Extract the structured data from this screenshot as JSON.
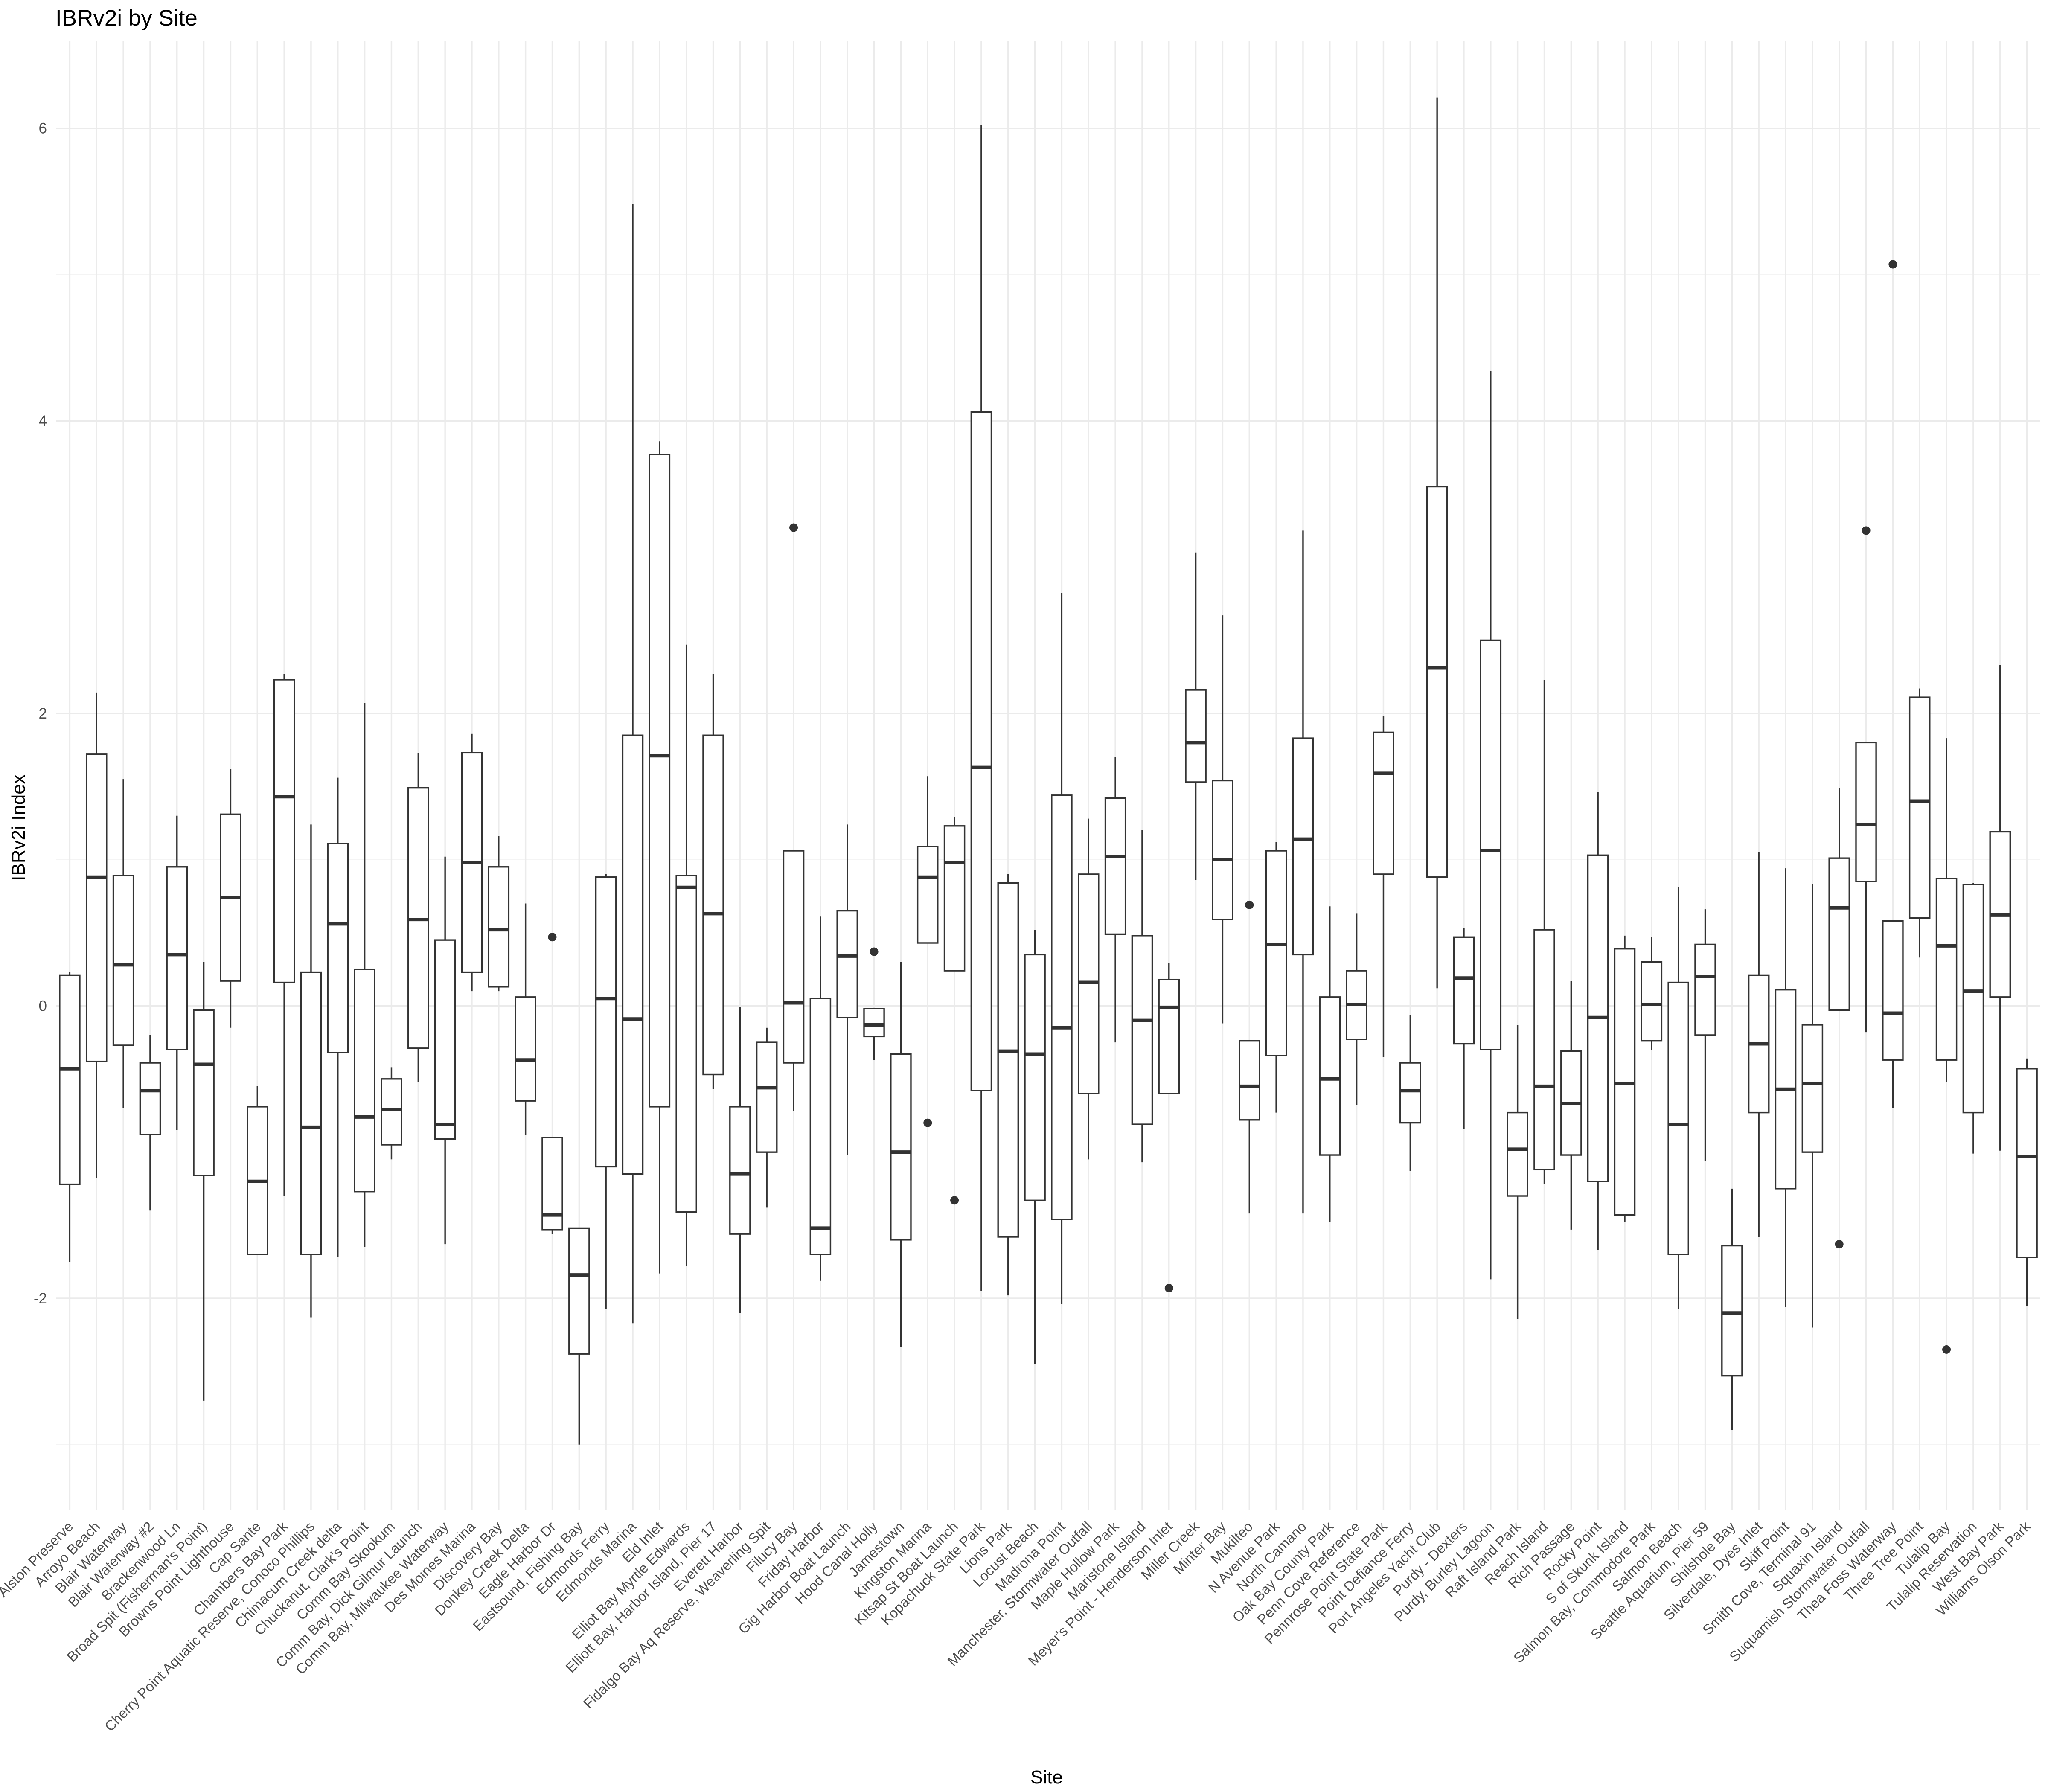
{
  "chart_data": {
    "type": "boxplot",
    "title": "IBRv2i by Site",
    "xlabel": "Site",
    "ylabel": "IBRv2i Index",
    "ylim": [
      -3.45,
      6.6
    ],
    "yticks": [
      -2,
      0,
      2,
      4,
      6
    ],
    "grid": true,
    "legend": "none",
    "categories": [
      "Alston Preserve",
      "Arroyo Beach",
      "Blair Waterway",
      "Blair Waterway #2",
      "Brackenwood Ln",
      "Broad Spit (Fisherman's Point)",
      "Browns Point Lighthouse",
      "Cap Sante",
      "Chambers Bay Park",
      "Cherry Point Aquatic Reserve, Conoco Phillips",
      "Chimacum Creek delta",
      "Chuckanut, Clark's Point",
      "Comm Bay Skookum",
      "Comm Bay, Dick Gilmur Launch",
      "Comm Bay, Milwaukee Waterway",
      "Des Moines Marina",
      "Discovery Bay",
      "Donkey Creek Delta",
      "Eagle Harbor Dr",
      "Eastsound, Fishing Bay",
      "Edmonds Ferry",
      "Edmonds Marina",
      "Eld Inlet",
      "Elliot Bay Myrtle Edwards",
      "Elliott Bay, Harbor Island, Pier 17",
      "Everett Harbor",
      "Fidalgo Bay Aq Reserve, Weaverling Spit",
      "Filucy Bay",
      "Friday Harbor",
      "Gig Harbor Boat Launch",
      "Hood Canal Holly",
      "Jamestown",
      "Kingston Marina",
      "Kitsap St Boat Launch",
      "Kopachuck State Park",
      "Lions Park",
      "Locust Beach",
      "Madrona Point",
      "Manchester, Stormwater Outfall",
      "Maple Hollow Park",
      "Maristone Island",
      "Meyer's Point - Henderson Inlet",
      "Miller Creek",
      "Minter Bay",
      "Mukilteo",
      "N Avenue Park",
      "North Camano",
      "Oak Bay County Park",
      "Penn Cove Reference",
      "Pennrose Point State Park",
      "Point Defiance Ferry",
      "Port Angeles Yacht Club",
      "Purdy - Dexters",
      "Purdy, Burley Lagoon",
      "Raft Island Park",
      "Reach Island",
      "Rich Passage",
      "Rocky Point",
      "S of Skunk Island",
      "Salmon Bay, Commodore Park",
      "Salmon Beach",
      "Seattle Aquarium, Pier 59",
      "Shilshole Bay",
      "Silverdale, Dyes Inlet",
      "Skiff Point",
      "Smith Cove, Terminal 91",
      "Squaxin Island",
      "Suquamish Stormwater Outfall",
      "Thea Foss Waterway",
      "Three Tree Point",
      "Tulalip Bay",
      "Tulalip Reservation",
      "West Bay Park",
      "Williams Olson Park"
    ],
    "boxes": [
      {
        "site": "Alston Preserve",
        "min": -1.75,
        "q1": -1.22,
        "median": -0.43,
        "q3": 0.21,
        "max": 0.23,
        "outliers": []
      },
      {
        "site": "Arroyo Beach",
        "min": -1.18,
        "q1": -0.38,
        "median": 0.88,
        "q3": 1.72,
        "max": 2.14,
        "outliers": []
      },
      {
        "site": "Blair Waterway",
        "min": -0.7,
        "q1": -0.27,
        "median": 0.28,
        "q3": 0.89,
        "max": 1.55,
        "outliers": []
      },
      {
        "site": "Blair Waterway #2",
        "min": -1.4,
        "q1": -0.88,
        "median": -0.58,
        "q3": -0.39,
        "max": -0.2,
        "outliers": []
      },
      {
        "site": "Brackenwood Ln",
        "min": -0.85,
        "q1": -0.3,
        "median": 0.35,
        "q3": 0.95,
        "max": 1.3,
        "outliers": []
      },
      {
        "site": "Broad Spit (Fisherman's Point)",
        "min": -2.7,
        "q1": -1.16,
        "median": -0.4,
        "q3": -0.03,
        "max": 0.3,
        "outliers": []
      },
      {
        "site": "Browns Point Lighthouse",
        "min": -0.15,
        "q1": 0.17,
        "median": 0.74,
        "q3": 1.31,
        "max": 1.62,
        "outliers": []
      },
      {
        "site": "Cap Sante",
        "min": -1.7,
        "q1": -1.7,
        "median": -1.2,
        "q3": -0.69,
        "max": -0.55,
        "outliers": []
      },
      {
        "site": "Chambers Bay Park",
        "min": -1.3,
        "q1": 0.16,
        "median": 1.43,
        "q3": 2.23,
        "max": 2.27,
        "outliers": []
      },
      {
        "site": "Cherry Point Aquatic Reserve, Conoco Phillips",
        "min": -2.13,
        "q1": -1.7,
        "median": -0.83,
        "q3": 0.23,
        "max": 1.24,
        "outliers": []
      },
      {
        "site": "Chimacum Creek delta",
        "min": -1.72,
        "q1": -0.32,
        "median": 0.56,
        "q3": 1.11,
        "max": 1.56,
        "outliers": []
      },
      {
        "site": "Chuckanut, Clark's Point",
        "min": -1.65,
        "q1": -1.27,
        "median": -0.76,
        "q3": 0.25,
        "max": 2.07,
        "outliers": []
      },
      {
        "site": "Comm Bay Skookum",
        "min": -1.05,
        "q1": -0.95,
        "median": -0.71,
        "q3": -0.5,
        "max": -0.42,
        "outliers": []
      },
      {
        "site": "Comm Bay, Dick Gilmur Launch",
        "min": -0.52,
        "q1": -0.29,
        "median": 0.59,
        "q3": 1.49,
        "max": 1.73,
        "outliers": []
      },
      {
        "site": "Comm Bay, Milwaukee Waterway",
        "min": -1.63,
        "q1": -0.91,
        "median": -0.81,
        "q3": 0.45,
        "max": 1.02,
        "outliers": []
      },
      {
        "site": "Des Moines Marina",
        "min": 0.1,
        "q1": 0.23,
        "median": 0.98,
        "q3": 1.73,
        "max": 1.86,
        "outliers": []
      },
      {
        "site": "Discovery Bay",
        "min": 0.1,
        "q1": 0.13,
        "median": 0.52,
        "q3": 0.95,
        "max": 1.16,
        "outliers": []
      },
      {
        "site": "Donkey Creek Delta",
        "min": -0.88,
        "q1": -0.65,
        "median": -0.37,
        "q3": 0.06,
        "max": 0.7,
        "outliers": []
      },
      {
        "site": "Eagle Harbor Dr",
        "min": -1.56,
        "q1": -1.53,
        "median": -1.43,
        "q3": -0.9,
        "max": -0.9,
        "outliers": [
          0.47
        ]
      },
      {
        "site": "Eastsound, Fishing Bay",
        "min": -3.0,
        "q1": -2.38,
        "median": -1.84,
        "q3": -1.52,
        "max": -1.52,
        "outliers": []
      },
      {
        "site": "Edmonds Ferry",
        "min": -2.07,
        "q1": -1.1,
        "median": 0.05,
        "q3": 0.88,
        "max": 0.9,
        "outliers": []
      },
      {
        "site": "Edmonds Marina",
        "min": -2.17,
        "q1": -1.15,
        "median": -0.09,
        "q3": 1.85,
        "max": 5.48,
        "outliers": []
      },
      {
        "site": "Eld Inlet",
        "min": -1.83,
        "q1": -0.69,
        "median": 1.71,
        "q3": 3.77,
        "max": 3.86,
        "outliers": []
      },
      {
        "site": "Elliot Bay Myrtle Edwards",
        "min": -1.78,
        "q1": -1.41,
        "median": 0.81,
        "q3": 0.89,
        "max": 2.47,
        "outliers": []
      },
      {
        "site": "Elliott Bay, Harbor Island, Pier 17",
        "min": -0.57,
        "q1": -0.47,
        "median": 0.63,
        "q3": 1.85,
        "max": 2.27,
        "outliers": []
      },
      {
        "site": "Everett Harbor",
        "min": -2.1,
        "q1": -1.56,
        "median": -1.15,
        "q3": -0.69,
        "max": -0.01,
        "outliers": []
      },
      {
        "site": "Fidalgo Bay Aq Reserve, Weaverling Spit",
        "min": -1.38,
        "q1": -1.0,
        "median": -0.56,
        "q3": -0.25,
        "max": -0.15,
        "outliers": []
      },
      {
        "site": "Filucy Bay",
        "min": -0.72,
        "q1": -0.39,
        "median": 0.02,
        "q3": 1.06,
        "max": 1.06,
        "outliers": [
          3.27
        ]
      },
      {
        "site": "Friday Harbor",
        "min": -1.88,
        "q1": -1.7,
        "median": -1.52,
        "q3": 0.05,
        "max": 0.61,
        "outliers": []
      },
      {
        "site": "Gig Harbor Boat Launch",
        "min": -1.02,
        "q1": -0.08,
        "median": 0.34,
        "q3": 0.65,
        "max": 1.24,
        "outliers": []
      },
      {
        "site": "Hood Canal Holly",
        "min": -0.37,
        "q1": -0.21,
        "median": -0.13,
        "q3": -0.02,
        "max": -0.02,
        "outliers": [
          0.37
        ]
      },
      {
        "site": "Jamestown",
        "min": -2.33,
        "q1": -1.6,
        "median": -1.0,
        "q3": -0.33,
        "max": 0.3,
        "outliers": []
      },
      {
        "site": "Kingston Marina",
        "min": 0.43,
        "q1": 0.43,
        "median": 0.88,
        "q3": 1.09,
        "max": 1.57,
        "outliers": [
          -0.8
        ]
      },
      {
        "site": "Kitsap St Boat Launch",
        "min": 0.24,
        "q1": 0.24,
        "median": 0.98,
        "q3": 1.23,
        "max": 1.29,
        "outliers": [
          -1.33
        ]
      },
      {
        "site": "Kopachuck State Park",
        "min": -1.95,
        "q1": -0.58,
        "median": 1.63,
        "q3": 4.06,
        "max": 6.02,
        "outliers": []
      },
      {
        "site": "Lions Park",
        "min": -1.98,
        "q1": -1.58,
        "median": -0.31,
        "q3": 0.84,
        "max": 0.9,
        "outliers": []
      },
      {
        "site": "Locust Beach",
        "min": -2.45,
        "q1": -1.33,
        "median": -0.33,
        "q3": 0.35,
        "max": 0.52,
        "outliers": []
      },
      {
        "site": "Madrona Point",
        "min": -2.04,
        "q1": -1.46,
        "median": -0.15,
        "q3": 1.44,
        "max": 2.82,
        "outliers": []
      },
      {
        "site": "Manchester, Stormwater Outfall",
        "min": -1.05,
        "q1": -0.6,
        "median": 0.16,
        "q3": 0.9,
        "max": 1.28,
        "outliers": []
      },
      {
        "site": "Maple Hollow Park",
        "min": -0.25,
        "q1": 0.49,
        "median": 1.02,
        "q3": 1.42,
        "max": 1.7,
        "outliers": []
      },
      {
        "site": "Maristone Island",
        "min": -1.07,
        "q1": -0.81,
        "median": -0.1,
        "q3": 0.48,
        "max": 1.2,
        "outliers": []
      },
      {
        "site": "Meyer's Point - Henderson Inlet",
        "min": -0.6,
        "q1": -0.6,
        "median": -0.01,
        "q3": 0.18,
        "max": 0.29,
        "outliers": [
          -1.93
        ]
      },
      {
        "site": "Miller Creek",
        "min": 0.86,
        "q1": 1.53,
        "median": 1.8,
        "q3": 2.16,
        "max": 3.1,
        "outliers": []
      },
      {
        "site": "Minter Bay",
        "min": -0.12,
        "q1": 0.59,
        "median": 1.0,
        "q3": 1.54,
        "max": 2.67,
        "outliers": []
      },
      {
        "site": "Mukilteo",
        "min": -1.42,
        "q1": -0.78,
        "median": -0.55,
        "q3": -0.24,
        "max": -0.24,
        "outliers": [
          0.69
        ]
      },
      {
        "site": "N Avenue Park",
        "min": -0.73,
        "q1": -0.34,
        "median": 0.42,
        "q3": 1.06,
        "max": 1.12,
        "outliers": []
      },
      {
        "site": "North Camano",
        "min": -1.42,
        "q1": 0.35,
        "median": 1.14,
        "q3": 1.83,
        "max": 3.25,
        "outliers": []
      },
      {
        "site": "Oak Bay County Park",
        "min": -1.48,
        "q1": -1.02,
        "median": -0.5,
        "q3": 0.06,
        "max": 0.68,
        "outliers": []
      },
      {
        "site": "Penn Cove Reference",
        "min": -0.68,
        "q1": -0.23,
        "median": 0.01,
        "q3": 0.24,
        "max": 0.63,
        "outliers": []
      },
      {
        "site": "Pennrose Point State Park",
        "min": -0.35,
        "q1": 0.9,
        "median": 1.59,
        "q3": 1.87,
        "max": 1.98,
        "outliers": []
      },
      {
        "site": "Point Defiance Ferry",
        "min": -1.13,
        "q1": -0.8,
        "median": -0.58,
        "q3": -0.39,
        "max": -0.06,
        "outliers": []
      },
      {
        "site": "Port Angeles Yacht Club",
        "min": 0.12,
        "q1": 0.88,
        "median": 2.31,
        "q3": 3.55,
        "max": 6.21,
        "outliers": []
      },
      {
        "site": "Purdy - Dexters",
        "min": -0.84,
        "q1": -0.26,
        "median": 0.19,
        "q3": 0.47,
        "max": 0.53,
        "outliers": []
      },
      {
        "site": "Purdy, Burley Lagoon",
        "min": -1.87,
        "q1": -0.3,
        "median": 1.06,
        "q3": 2.5,
        "max": 4.34,
        "outliers": []
      },
      {
        "site": "Raft Island Park",
        "min": -2.14,
        "q1": -1.3,
        "median": -0.98,
        "q3": -0.73,
        "max": -0.13,
        "outliers": []
      },
      {
        "site": "Reach Island",
        "min": -1.22,
        "q1": -1.12,
        "median": -0.55,
        "q3": 0.52,
        "max": 2.23,
        "outliers": []
      },
      {
        "site": "Rich Passage",
        "min": -1.53,
        "q1": -1.02,
        "median": -0.67,
        "q3": -0.31,
        "max": 0.17,
        "outliers": []
      },
      {
        "site": "Rocky Point",
        "min": -1.67,
        "q1": -1.2,
        "median": -0.08,
        "q3": 1.03,
        "max": 1.46,
        "outliers": []
      },
      {
        "site": "S of Skunk Island",
        "min": -1.48,
        "q1": -1.43,
        "median": -0.53,
        "q3": 0.39,
        "max": 0.48,
        "outliers": []
      },
      {
        "site": "Salmon Bay, Commodore Park",
        "min": -0.3,
        "q1": -0.24,
        "median": 0.01,
        "q3": 0.3,
        "max": 0.47,
        "outliers": []
      },
      {
        "site": "Salmon Beach",
        "min": -2.07,
        "q1": -1.7,
        "median": -0.81,
        "q3": 0.16,
        "max": 0.81,
        "outliers": []
      },
      {
        "site": "Seattle Aquarium, Pier 59",
        "min": -1.06,
        "q1": -0.2,
        "median": 0.2,
        "q3": 0.42,
        "max": 0.66,
        "outliers": []
      },
      {
        "site": "Shilshole Bay",
        "min": -2.9,
        "q1": -2.53,
        "median": -2.1,
        "q3": -1.64,
        "max": -1.25,
        "outliers": []
      },
      {
        "site": "Silverdale, Dyes Inlet",
        "min": -1.58,
        "q1": -0.73,
        "median": -0.26,
        "q3": 0.21,
        "max": 1.05,
        "outliers": []
      },
      {
        "site": "Skiff Point",
        "min": -2.06,
        "q1": -1.25,
        "median": -0.57,
        "q3": 0.11,
        "max": 0.94,
        "outliers": []
      },
      {
        "site": "Smith Cove, Terminal 91",
        "min": -2.2,
        "q1": -1.0,
        "median": -0.53,
        "q3": -0.13,
        "max": 0.83,
        "outliers": []
      },
      {
        "site": "Squaxin Island",
        "min": -0.03,
        "q1": -0.03,
        "median": 0.67,
        "q3": 1.01,
        "max": 1.49,
        "outliers": [
          -1.63
        ]
      },
      {
        "site": "Suquamish Stormwater Outfall",
        "min": -0.18,
        "q1": 0.85,
        "median": 1.24,
        "q3": 1.8,
        "max": 1.8,
        "outliers": [
          3.25
        ]
      },
      {
        "site": "Thea Foss Waterway",
        "min": -0.7,
        "q1": -0.37,
        "median": -0.05,
        "q3": 0.58,
        "max": 0.58,
        "outliers": [
          5.07
        ]
      },
      {
        "site": "Three Tree Point",
        "min": 0.33,
        "q1": 0.6,
        "median": 1.4,
        "q3": 2.11,
        "max": 2.17,
        "outliers": []
      },
      {
        "site": "Tulalip Bay",
        "min": -0.52,
        "q1": -0.37,
        "median": 0.41,
        "q3": 0.87,
        "max": 1.83,
        "outliers": [
          -2.35
        ]
      },
      {
        "site": "Tulalip Reservation",
        "min": -1.01,
        "q1": -0.73,
        "median": 0.1,
        "q3": 0.83,
        "max": 0.84,
        "outliers": []
      },
      {
        "site": "West Bay Park",
        "min": -0.99,
        "q1": 0.06,
        "median": 0.62,
        "q3": 1.19,
        "max": 2.33,
        "outliers": []
      },
      {
        "site": "Williams Olson Park",
        "min": -2.05,
        "q1": -1.72,
        "median": -1.03,
        "q3": -0.43,
        "max": -0.36,
        "outliers": []
      }
    ]
  }
}
